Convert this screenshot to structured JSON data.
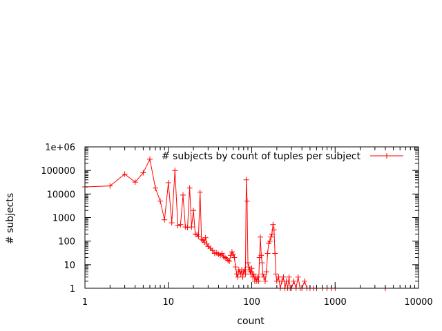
{
  "chart_data": {
    "type": "line",
    "xlabel": "count",
    "ylabel": "# subjects",
    "x_scale": "log",
    "y_scale": "log",
    "xlim": [
      1,
      10000
    ],
    "ylim": [
      1,
      1000000
    ],
    "x_ticks": [
      1,
      10,
      100,
      1000,
      10000
    ],
    "x_tick_labels": [
      "1",
      "10",
      "100",
      "1000",
      "10000"
    ],
    "y_ticks": [
      1,
      10,
      100,
      1000,
      10000,
      100000,
      1000000
    ],
    "y_tick_labels": [
      "1",
      "10",
      "100",
      "1000",
      "10000",
      "100000",
      "1e+06"
    ],
    "grid": false,
    "legend_position": "top-right",
    "colors": {
      "series": "#ff0000",
      "axis": "#000000"
    },
    "series": [
      {
        "name": "# subjects by count of tuples per subject",
        "marker": "plus",
        "points": [
          [
            1,
            20000
          ],
          [
            2,
            22000
          ],
          [
            3,
            70000
          ],
          [
            4,
            32000
          ],
          [
            5,
            80000
          ],
          [
            6,
            300000
          ],
          [
            7,
            18000
          ],
          [
            8,
            5000
          ],
          [
            9,
            800
          ],
          [
            10,
            30000
          ],
          [
            11,
            600
          ],
          [
            12,
            100000
          ],
          [
            13,
            450
          ],
          [
            14,
            500
          ],
          [
            15,
            9000
          ],
          [
            16,
            400
          ],
          [
            17,
            380
          ],
          [
            18,
            18000
          ],
          [
            19,
            400
          ],
          [
            20,
            2000
          ],
          [
            21,
            200
          ],
          [
            22,
            190
          ],
          [
            23,
            160
          ],
          [
            24,
            12000
          ],
          [
            25,
            120
          ],
          [
            26,
            110
          ],
          [
            27,
            90
          ],
          [
            28,
            140
          ],
          [
            29,
            75
          ],
          [
            30,
            60
          ],
          [
            32,
            50
          ],
          [
            34,
            40
          ],
          [
            36,
            30
          ],
          [
            38,
            32
          ],
          [
            40,
            28
          ],
          [
            42,
            25
          ],
          [
            44,
            30
          ],
          [
            46,
            22
          ],
          [
            48,
            20
          ],
          [
            50,
            18
          ],
          [
            52,
            15
          ],
          [
            54,
            14
          ],
          [
            56,
            25
          ],
          [
            58,
            35
          ],
          [
            60,
            28
          ],
          [
            62,
            20
          ],
          [
            64,
            8
          ],
          [
            66,
            4
          ],
          [
            68,
            3
          ],
          [
            70,
            6
          ],
          [
            72,
            5
          ],
          [
            74,
            4
          ],
          [
            76,
            6
          ],
          [
            78,
            3
          ],
          [
            80,
            5
          ],
          [
            82,
            6
          ],
          [
            84,
            4
          ],
          [
            86,
            40000
          ],
          [
            88,
            5000
          ],
          [
            90,
            12
          ],
          [
            92,
            8
          ],
          [
            94,
            6
          ],
          [
            96,
            5
          ],
          [
            98,
            4
          ],
          [
            100,
            7
          ],
          [
            103,
            3
          ],
          [
            106,
            4
          ],
          [
            109,
            2
          ],
          [
            112,
            3
          ],
          [
            115,
            2
          ],
          [
            118,
            3
          ],
          [
            121,
            2
          ],
          [
            124,
            20
          ],
          [
            127,
            150
          ],
          [
            130,
            25
          ],
          [
            133,
            12
          ],
          [
            136,
            4
          ],
          [
            140,
            3
          ],
          [
            145,
            2
          ],
          [
            150,
            5
          ],
          [
            155,
            30
          ],
          [
            160,
            80
          ],
          [
            165,
            100
          ],
          [
            170,
            150
          ],
          [
            175,
            200
          ],
          [
            180,
            500
          ],
          [
            185,
            300
          ],
          [
            190,
            30
          ],
          [
            195,
            4
          ],
          [
            200,
            2
          ],
          [
            210,
            3
          ],
          [
            220,
            1
          ],
          [
            230,
            2
          ],
          [
            240,
            3
          ],
          [
            250,
            1
          ],
          [
            260,
            2
          ],
          [
            270,
            1
          ],
          [
            280,
            3
          ],
          [
            290,
            1
          ],
          [
            300,
            1
          ],
          [
            320,
            2
          ],
          [
            340,
            1
          ],
          [
            360,
            3
          ],
          [
            380,
            1
          ],
          [
            400,
            1
          ],
          [
            430,
            2
          ],
          [
            460,
            1
          ],
          [
            500,
            1
          ],
          [
            550,
            1
          ],
          [
            600,
            1
          ],
          [
            700,
            1
          ],
          [
            800,
            1
          ],
          [
            900,
            1
          ],
          [
            1000,
            1
          ],
          [
            4000,
            1
          ]
        ]
      }
    ]
  }
}
